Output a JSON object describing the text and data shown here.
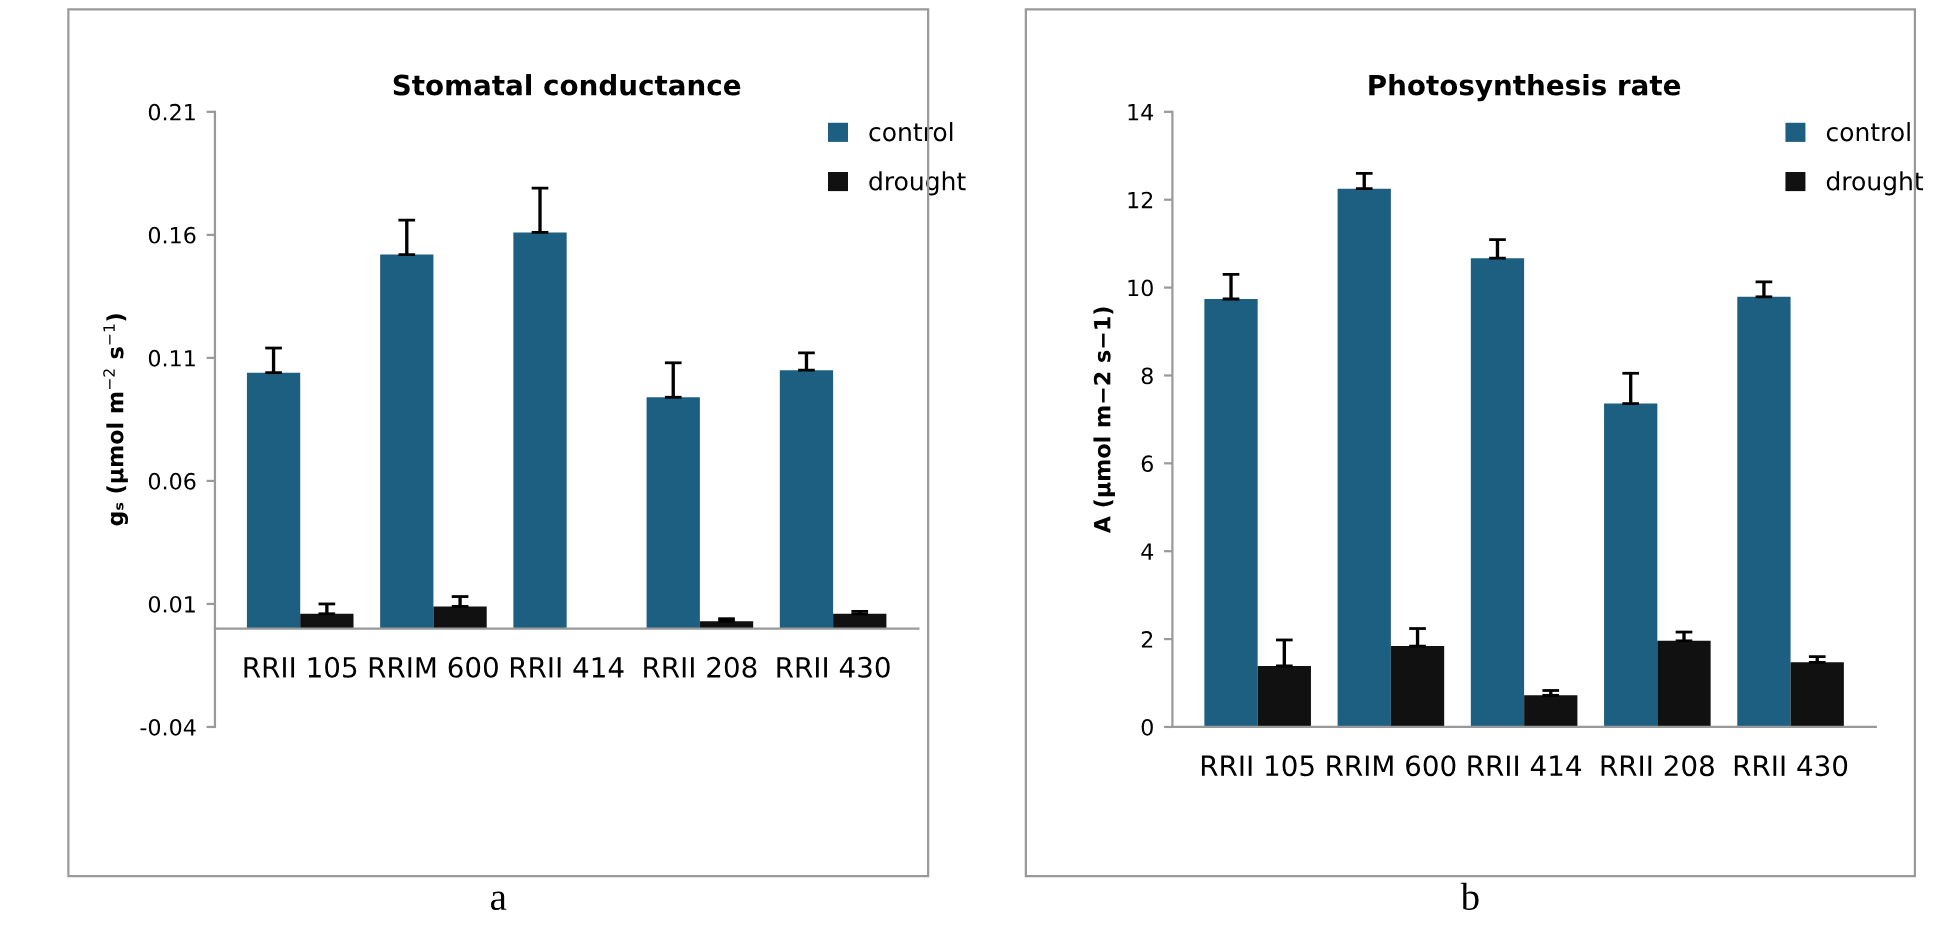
{
  "chart_data": [
    {
      "type": "bar",
      "title": "Stomatal conductance",
      "ylabel": "gₛ (µmol m$^{−2}$ s$^{−1}$)",
      "categories": [
        "RRII 105",
        "RRIM 600",
        "RRII 414",
        "RRII 208",
        "RRII 430"
      ],
      "series": [
        {
          "name": "control",
          "color": "#1d5f80",
          "values": [
            0.104,
            0.152,
            0.161,
            0.094,
            0.105
          ],
          "errors": [
            0.01,
            0.014,
            0.018,
            0.014,
            0.007
          ]
        },
        {
          "name": "drought",
          "color": "#111111",
          "values": [
            0.006,
            0.009,
            null,
            0.003,
            0.006
          ],
          "errors": [
            0.004,
            0.004,
            null,
            0.001,
            0.001
          ]
        }
      ],
      "ylim": [
        -0.04,
        0.21
      ],
      "yticks": [
        {
          "value": 0.21,
          "label": "0.21"
        },
        {
          "value": 0.16,
          "label": "0.16"
        },
        {
          "value": 0.11,
          "label": "0.11"
        },
        {
          "value": 0.06,
          "label": "0.06"
        },
        {
          "value": 0.01,
          "label": "0.01"
        },
        {
          "value": -0.04,
          "label": "-0.04"
        }
      ],
      "grid": false,
      "legend": "top right",
      "annotations": [
        "a"
      ]
    },
    {
      "type": "bar",
      "title": "Photosynthesis rate",
      "ylabel": "A (µmol m−2 s−1)",
      "categories": [
        "RRII 105",
        "RRIM 600",
        "RRII 414",
        "RRII 208",
        "RRII 430"
      ],
      "series": [
        {
          "name": "control",
          "color": "#1d5f80",
          "values": [
            9.74,
            12.25,
            10.67,
            7.36,
            9.79
          ],
          "errors": [
            0.56,
            0.35,
            0.42,
            0.69,
            0.34
          ]
        },
        {
          "name": "drought",
          "color": "#111111",
          "values": [
            1.39,
            1.84,
            0.72,
            1.96,
            1.47
          ],
          "errors": [
            0.59,
            0.4,
            0.11,
            0.2,
            0.13
          ]
        }
      ],
      "ylim": [
        0,
        14
      ],
      "yticks": [
        0,
        2,
        4,
        6,
        8,
        10,
        12,
        14
      ],
      "grid": false,
      "legend": "top right",
      "annotations": [
        "b"
      ]
    }
  ]
}
